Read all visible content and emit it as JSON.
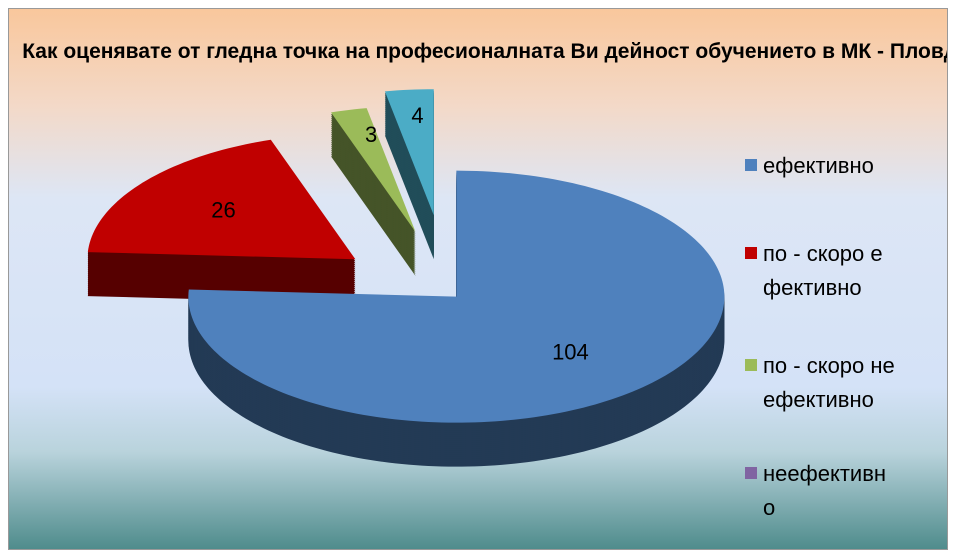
{
  "chart_data": {
    "type": "pie3d",
    "title": "Как оценявате от гледна точка на професионалната Ви дейност обучението в МК - Пловдив?",
    "categories": [
      "ефективно",
      "по - скоро ефективно",
      "по - скоро неефективно",
      "неефективно",
      null
    ],
    "values": [
      104,
      26,
      3,
      0,
      4
    ],
    "colors": [
      "#4f81bd",
      "#c00000",
      "#9bbb59",
      "#8064a2",
      "#4bacc6"
    ],
    "legend": "right"
  }
}
